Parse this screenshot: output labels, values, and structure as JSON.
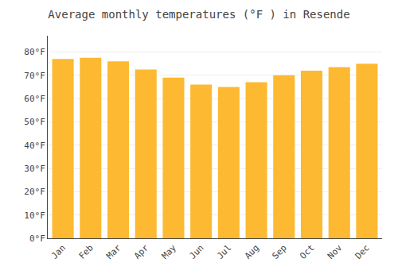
{
  "chart_data": {
    "type": "bar",
    "title": "Average monthly temperatures (°F ) in Resende",
    "categories": [
      "Jan",
      "Feb",
      "Mar",
      "Apr",
      "May",
      "Jun",
      "Jul",
      "Aug",
      "Sep",
      "Oct",
      "Nov",
      "Dec"
    ],
    "values": [
      77.0,
      77.5,
      76.0,
      72.5,
      69.0,
      66.0,
      65.0,
      67.0,
      70.0,
      72.0,
      73.5,
      75.0
    ],
    "color": "#FDB931",
    "ylim": [
      0,
      87
    ],
    "yticks": [
      {
        "value": 0,
        "label": "0°F"
      },
      {
        "value": 10,
        "label": "10°F"
      },
      {
        "value": 20,
        "label": "20°F"
      },
      {
        "value": 30,
        "label": "30°F"
      },
      {
        "value": 40,
        "label": "40°F"
      },
      {
        "value": 50,
        "label": "50°F"
      },
      {
        "value": 60,
        "label": "60°F"
      },
      {
        "value": 70,
        "label": "70°F"
      },
      {
        "value": 80,
        "label": "80°F"
      }
    ],
    "grid": true
  }
}
